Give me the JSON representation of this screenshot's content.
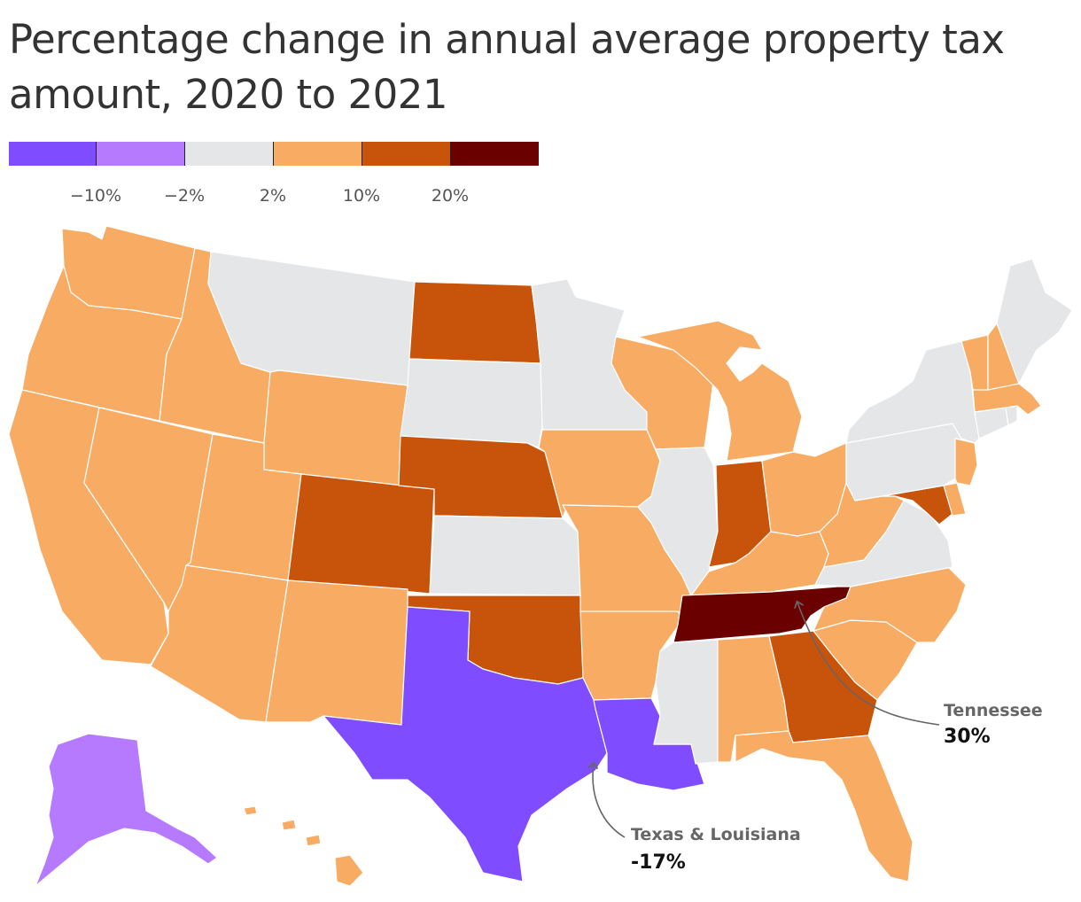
{
  "title": "Percentage change in annual average property tax amount, 2020 to 2021",
  "legend": {
    "bins": [
      {
        "color": "#7f4dff"
      },
      {
        "color": "#b57aff"
      },
      {
        "color": "#e5e6e8"
      },
      {
        "color": "#f7ab63"
      },
      {
        "color": "#c8540b"
      },
      {
        "color": "#6b0000"
      }
    ],
    "ticks": [
      "−10%",
      "−2%",
      "2%",
      "10%",
      "20%"
    ]
  },
  "colors": {
    "bin_0": "#7f4dff",
    "bin_1": "#b57aff",
    "bin_2": "#e5e6e8",
    "bin_3": "#f7ab63",
    "bin_4": "#c8540b",
    "bin_5": "#6b0000"
  },
  "states": [
    {
      "name": "Washington",
      "bin": 3
    },
    {
      "name": "Oregon",
      "bin": 3
    },
    {
      "name": "California",
      "bin": 3
    },
    {
      "name": "Idaho",
      "bin": 3
    },
    {
      "name": "Nevada",
      "bin": 3
    },
    {
      "name": "Montana",
      "bin": 2
    },
    {
      "name": "Wyoming",
      "bin": 3
    },
    {
      "name": "Utah",
      "bin": 3
    },
    {
      "name": "Arizona",
      "bin": 3
    },
    {
      "name": "Colorado",
      "bin": 4
    },
    {
      "name": "New Mexico",
      "bin": 3
    },
    {
      "name": "North Dakota",
      "bin": 4
    },
    {
      "name": "South Dakota",
      "bin": 2
    },
    {
      "name": "Nebraska",
      "bin": 4
    },
    {
      "name": "Kansas",
      "bin": 2
    },
    {
      "name": "Oklahoma",
      "bin": 4
    },
    {
      "name": "Texas",
      "bin": 0
    },
    {
      "name": "Minnesota",
      "bin": 2
    },
    {
      "name": "Iowa",
      "bin": 3
    },
    {
      "name": "Missouri",
      "bin": 3
    },
    {
      "name": "Arkansas",
      "bin": 3
    },
    {
      "name": "Louisiana",
      "bin": 0
    },
    {
      "name": "Wisconsin",
      "bin": 3
    },
    {
      "name": "Illinois",
      "bin": 2
    },
    {
      "name": "Michigan",
      "bin": 3
    },
    {
      "name": "Indiana",
      "bin": 4
    },
    {
      "name": "Ohio",
      "bin": 3
    },
    {
      "name": "Kentucky",
      "bin": 3
    },
    {
      "name": "Tennessee",
      "bin": 5
    },
    {
      "name": "Mississippi",
      "bin": 2
    },
    {
      "name": "Alabama",
      "bin": 3
    },
    {
      "name": "Georgia",
      "bin": 4
    },
    {
      "name": "Florida",
      "bin": 3
    },
    {
      "name": "South Carolina",
      "bin": 3
    },
    {
      "name": "North Carolina",
      "bin": 3
    },
    {
      "name": "Virginia",
      "bin": 2
    },
    {
      "name": "West Virginia",
      "bin": 3
    },
    {
      "name": "Maryland",
      "bin": 4
    },
    {
      "name": "Delaware",
      "bin": 3
    },
    {
      "name": "Pennsylvania",
      "bin": 2
    },
    {
      "name": "New Jersey",
      "bin": 3
    },
    {
      "name": "New York",
      "bin": 2
    },
    {
      "name": "Connecticut",
      "bin": 2
    },
    {
      "name": "Rhode Island",
      "bin": 2
    },
    {
      "name": "Massachusetts",
      "bin": 3
    },
    {
      "name": "Vermont",
      "bin": 3
    },
    {
      "name": "New Hampshire",
      "bin": 3
    },
    {
      "name": "Maine",
      "bin": 2
    },
    {
      "name": "Alaska",
      "bin": 1
    },
    {
      "name": "Hawaii",
      "bin": 3
    }
  ],
  "annotations": [
    {
      "label": "Tennessee",
      "value": "30%"
    },
    {
      "label": "Texas & Louisiana",
      "value": "-17%"
    }
  ]
}
